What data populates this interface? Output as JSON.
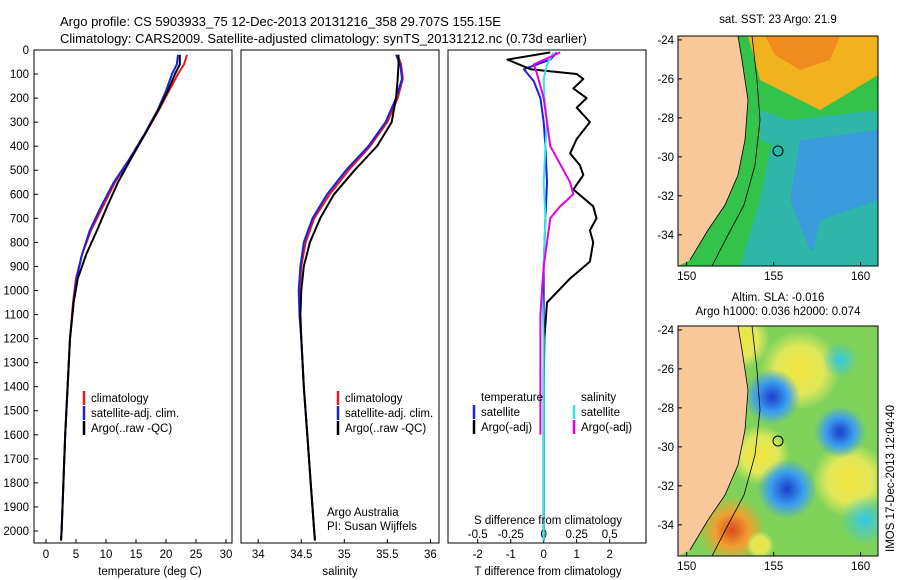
{
  "header": {
    "line1": "Argo profile: CS 5903933_75 12-Dec-2013 20131216_358 29.707S 155.15E",
    "line2": "Climatology: CARS2009. Satellite-adjusted climatology: synTS_20131212.nc (0.73d earlier)"
  },
  "colors": {
    "climatology": "#e41a1c",
    "satellite": "#1f1fe0",
    "argo": "#000000",
    "sal_satellite": "#33e6ee",
    "sal_argo": "#e600e6"
  },
  "credit": {
    "line1": "Argo Australia",
    "line2": "PI: Susan Wijffels"
  },
  "timestamp": "IMOS 17-Dec-2013 12:04:40",
  "maps": {
    "sst": {
      "title": "sat. SST: 23 Argo: 21.9",
      "xticks": [
        "150",
        "155",
        "160"
      ],
      "yticks": [
        "-24",
        "-26",
        "-28",
        "-30",
        "-32",
        "-34"
      ]
    },
    "sla": {
      "title1": "Altim. SLA: -0.016",
      "title2": "Argo h1000: 0.036 h2000: 0.074",
      "xticks": [
        "150",
        "155",
        "160"
      ],
      "yticks": [
        "-24",
        "-26",
        "-28",
        "-30",
        "-32",
        "-34"
      ]
    }
  },
  "chart_data": [
    {
      "type": "line",
      "xlabel": "temperature (deg C)",
      "xticks": [
        "0",
        "5",
        "10",
        "15",
        "20",
        "25",
        "30"
      ],
      "xlim": [
        -2,
        31
      ],
      "ylim": [
        2050,
        0
      ],
      "yticks": [
        "0",
        "100",
        "200",
        "300",
        "400",
        "500",
        "600",
        "700",
        "800",
        "900",
        "1000",
        "1100",
        "1200",
        "1300",
        "1400",
        "1500",
        "1600",
        "1700",
        "1800",
        "1900",
        "2000"
      ],
      "legend": [
        "climatology",
        "satellite-adj. clim.",
        "Argo(..raw -QC)"
      ],
      "series": [
        {
          "name": "climatology",
          "points": [
            [
              23.5,
              20
            ],
            [
              23.0,
              60
            ],
            [
              22.0,
              100
            ],
            [
              20.5,
              170
            ],
            [
              18.8,
              250
            ],
            [
              16.5,
              350
            ],
            [
              14.0,
              450
            ],
            [
              11.5,
              550
            ],
            [
              9.5,
              650
            ],
            [
              7.5,
              750
            ],
            [
              6.0,
              850
            ],
            [
              5.0,
              950
            ],
            [
              4.5,
              1050
            ],
            [
              4.0,
              1200
            ],
            [
              3.6,
              1400
            ],
            [
              3.2,
              1600
            ],
            [
              2.9,
              1800
            ],
            [
              2.6,
              2000
            ],
            [
              2.5,
              2040
            ]
          ]
        },
        {
          "name": "satellite-adj. clim.",
          "points": [
            [
              22.0,
              20
            ],
            [
              21.8,
              60
            ],
            [
              21.0,
              100
            ],
            [
              20.0,
              170
            ],
            [
              18.6,
              250
            ],
            [
              16.4,
              350
            ],
            [
              14.0,
              450
            ],
            [
              11.3,
              550
            ],
            [
              9.2,
              650
            ],
            [
              7.3,
              750
            ],
            [
              6.0,
              850
            ],
            [
              5.1,
              950
            ],
            [
              4.6,
              1050
            ],
            [
              4.0,
              1200
            ],
            [
              3.6,
              1400
            ],
            [
              3.2,
              1600
            ],
            [
              2.9,
              1800
            ],
            [
              2.6,
              2000
            ],
            [
              2.5,
              2040
            ]
          ]
        },
        {
          "name": "Argo(..raw -QC)",
          "points": [
            [
              22.3,
              20
            ],
            [
              22.3,
              60
            ],
            [
              21.5,
              100
            ],
            [
              20.3,
              170
            ],
            [
              18.7,
              250
            ],
            [
              16.5,
              350
            ],
            [
              14.2,
              450
            ],
            [
              12.0,
              550
            ],
            [
              10.2,
              650
            ],
            [
              8.5,
              750
            ],
            [
              6.7,
              850
            ],
            [
              5.3,
              950
            ],
            [
              4.6,
              1050
            ],
            [
              4.0,
              1200
            ],
            [
              3.6,
              1400
            ],
            [
              3.2,
              1600
            ],
            [
              2.9,
              1800
            ],
            [
              2.6,
              2000
            ],
            [
              2.5,
              2040
            ]
          ]
        }
      ]
    },
    {
      "type": "line",
      "xlabel": "salinity",
      "xticks": [
        "34",
        "34.5",
        "35",
        "35.5",
        "36"
      ],
      "xlim": [
        33.8,
        36.1
      ],
      "ylim": [
        2050,
        0
      ],
      "legend": [
        "climatology",
        "satellite-adj. clim.",
        "Argo(..raw -QC)"
      ],
      "series": [
        {
          "name": "climatology",
          "points": [
            [
              35.62,
              20
            ],
            [
              35.66,
              60
            ],
            [
              35.68,
              120
            ],
            [
              35.62,
              200
            ],
            [
              35.5,
              300
            ],
            [
              35.3,
              400
            ],
            [
              35.05,
              500
            ],
            [
              34.83,
              600
            ],
            [
              34.65,
              700
            ],
            [
              34.55,
              800
            ],
            [
              34.5,
              900
            ],
            [
              34.48,
              1000
            ],
            [
              34.48,
              1100
            ],
            [
              34.5,
              1200
            ],
            [
              34.53,
              1400
            ],
            [
              34.57,
              1600
            ],
            [
              34.61,
              1800
            ],
            [
              34.65,
              2000
            ],
            [
              34.66,
              2040
            ]
          ]
        },
        {
          "name": "satellite-adj. clim.",
          "points": [
            [
              35.6,
              20
            ],
            [
              35.65,
              60
            ],
            [
              35.67,
              120
            ],
            [
              35.6,
              200
            ],
            [
              35.48,
              300
            ],
            [
              35.28,
              400
            ],
            [
              35.02,
              500
            ],
            [
              34.8,
              600
            ],
            [
              34.63,
              700
            ],
            [
              34.53,
              800
            ],
            [
              34.49,
              900
            ],
            [
              34.47,
              1000
            ],
            [
              34.48,
              1100
            ],
            [
              34.5,
              1200
            ],
            [
              34.53,
              1400
            ],
            [
              34.57,
              1600
            ],
            [
              34.61,
              1800
            ],
            [
              34.65,
              2000
            ],
            [
              34.66,
              2040
            ]
          ]
        },
        {
          "name": "Argo(..raw -QC)",
          "points": [
            [
              35.63,
              20
            ],
            [
              35.63,
              60
            ],
            [
              35.62,
              120
            ],
            [
              35.6,
              200
            ],
            [
              35.55,
              300
            ],
            [
              35.38,
              400
            ],
            [
              35.12,
              500
            ],
            [
              34.88,
              600
            ],
            [
              34.72,
              700
            ],
            [
              34.6,
              800
            ],
            [
              34.53,
              900
            ],
            [
              34.5,
              1000
            ],
            [
              34.49,
              1100
            ],
            [
              34.5,
              1200
            ],
            [
              34.53,
              1400
            ],
            [
              34.57,
              1600
            ],
            [
              34.61,
              1800
            ],
            [
              34.65,
              2000
            ],
            [
              34.66,
              2040
            ]
          ]
        }
      ]
    },
    {
      "type": "line",
      "xlabel": "T difference from climatology",
      "title": "S difference from climatology",
      "xticks_T": [
        "-2",
        "-1",
        "0",
        "1",
        "2"
      ],
      "xticks_S": [
        "-0.5",
        "-0.25",
        "0",
        "0.25",
        "0.5"
      ],
      "xlim": [
        -2.9,
        3.1
      ],
      "ylim": [
        2050,
        0
      ],
      "legend_left_title": "temperature",
      "legend_right_title": "salinity",
      "legend_left": [
        "satellite",
        "Argo(-adj)"
      ],
      "legend_right": [
        "satellite",
        "Argo(-adj)"
      ],
      "series": [
        {
          "name": "temperature satellite",
          "points": [
            [
              0.4,
              10
            ],
            [
              0.2,
              40
            ],
            [
              -0.6,
              80
            ],
            [
              -0.3,
              130
            ],
            [
              -0.1,
              200
            ],
            [
              0.0,
              300
            ],
            [
              0.05,
              400
            ],
            [
              0.1,
              550
            ],
            [
              0.05,
              700
            ],
            [
              0.0,
              900
            ],
            [
              0.0,
              1100
            ],
            [
              0.0,
              1500
            ],
            [
              0.0,
              2000
            ],
            [
              0.0,
              2040
            ]
          ]
        },
        {
          "name": "temperature Argo(-adj)",
          "points": [
            [
              0.2,
              10
            ],
            [
              -1.1,
              40
            ],
            [
              -0.4,
              80
            ],
            [
              1.0,
              100
            ],
            [
              1.2,
              120
            ],
            [
              0.9,
              160
            ],
            [
              1.3,
              200
            ],
            [
              1.0,
              240
            ],
            [
              1.4,
              300
            ],
            [
              1.0,
              370
            ],
            [
              0.8,
              430
            ],
            [
              1.1,
              480
            ],
            [
              1.2,
              520
            ],
            [
              0.9,
              580
            ],
            [
              1.5,
              650
            ],
            [
              1.6,
              700
            ],
            [
              1.4,
              750
            ],
            [
              1.5,
              800
            ],
            [
              1.4,
              880
            ],
            [
              0.8,
              950
            ],
            [
              0.1,
              1050
            ],
            [
              0.02,
              1200
            ],
            [
              0.0,
              1400
            ],
            [
              0.0,
              1700
            ],
            [
              0.0,
              2040
            ]
          ]
        },
        {
          "name": "salinity satellite",
          "points": [
            [
              0.3,
              10
            ],
            [
              0.1,
              60
            ],
            [
              0.0,
              120
            ],
            [
              0.02,
              200
            ],
            [
              0.1,
              300
            ],
            [
              0.05,
              400
            ],
            [
              0.0,
              550
            ],
            [
              0.05,
              700
            ],
            [
              0.0,
              900
            ],
            [
              -0.05,
              1000
            ],
            [
              0.0,
              1200
            ],
            [
              0.0,
              1500
            ],
            [
              0.0,
              2040
            ]
          ]
        },
        {
          "name": "salinity Argo(-adj)",
          "points": [
            [
              0.5,
              10
            ],
            [
              -0.3,
              60
            ],
            [
              -0.2,
              100
            ],
            [
              0.0,
              200
            ],
            [
              0.2,
              400
            ],
            [
              0.6,
              500
            ],
            [
              0.8,
              550
            ],
            [
              0.9,
              600
            ],
            [
              0.5,
              650
            ],
            [
              0.2,
              700
            ],
            [
              0.1,
              800
            ],
            [
              0.0,
              900
            ],
            [
              -0.05,
              1000
            ],
            [
              -0.1,
              1100
            ],
            [
              -0.1,
              1300
            ],
            [
              -0.1,
              1500
            ],
            [
              -0.1,
              1600
            ]
          ]
        }
      ]
    }
  ]
}
